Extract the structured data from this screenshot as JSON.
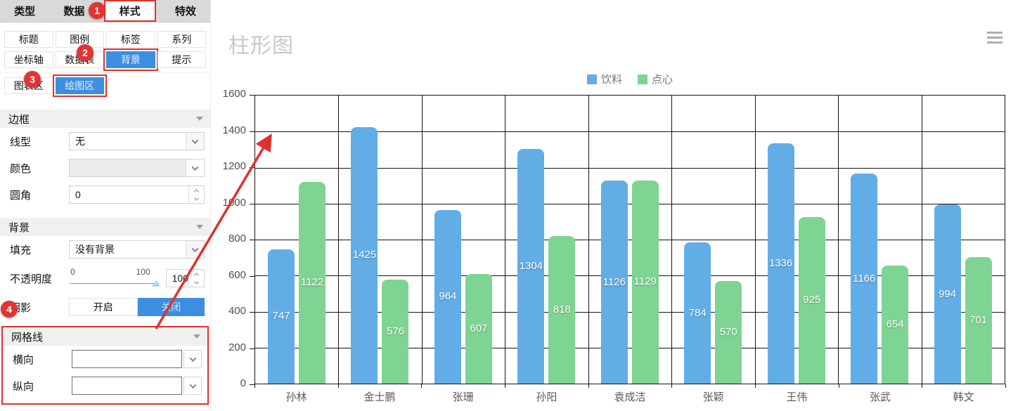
{
  "panel": {
    "tabs": [
      {
        "label": "类型"
      },
      {
        "label": "数据"
      },
      {
        "label": "样式"
      },
      {
        "label": "特效"
      }
    ],
    "buttons": {
      "row1": [
        "标题",
        "图例",
        "标签",
        "系列"
      ],
      "row2": [
        "坐标轴",
        "数据表",
        "背景",
        "提示"
      ],
      "row3": [
        "图表区",
        "绘图区"
      ]
    },
    "border": {
      "title": "边框",
      "line_label": "线型",
      "line_value": "无",
      "color_label": "颜色",
      "color_value": "",
      "corner_label": "圆角",
      "corner_value": "0"
    },
    "background": {
      "title": "背景",
      "fill_label": "填充",
      "fill_value": "没有背景",
      "opacity_label": "不透明度",
      "opacity_min": "0",
      "opacity_max": "100",
      "opacity_value": "100",
      "shadow_label": "阴影",
      "shadow_on": "开启",
      "shadow_off": "关闭"
    },
    "grid": {
      "title": "网格线",
      "h_label": "横向",
      "v_label": "纵向",
      "h_color": "#000000",
      "v_color": "#000000"
    }
  },
  "annotations": {
    "steps": [
      "1",
      "2",
      "3",
      "4"
    ],
    "accent_color": "#e0312e"
  },
  "chart_data": {
    "type": "bar",
    "title": "柱形图",
    "categories": [
      "孙林",
      "金士鹏",
      "张珊",
      "孙阳",
      "袁成洁",
      "张颖",
      "王伟",
      "张武",
      "韩文"
    ],
    "series": [
      {
        "name": "饮料",
        "color": "#62ade6",
        "values": [
          747,
          1425,
          964,
          1304,
          1126,
          784,
          1336,
          1166,
          994
        ]
      },
      {
        "name": "点心",
        "color": "#7ed492",
        "values": [
          1122,
          576,
          607,
          818,
          1129,
          570,
          925,
          654,
          701
        ]
      }
    ],
    "ylim": [
      0,
      1600
    ],
    "ytick_step": 200,
    "grid_on": true,
    "grid_color": "#141414",
    "legend_position": "top",
    "value_labels": true
  }
}
